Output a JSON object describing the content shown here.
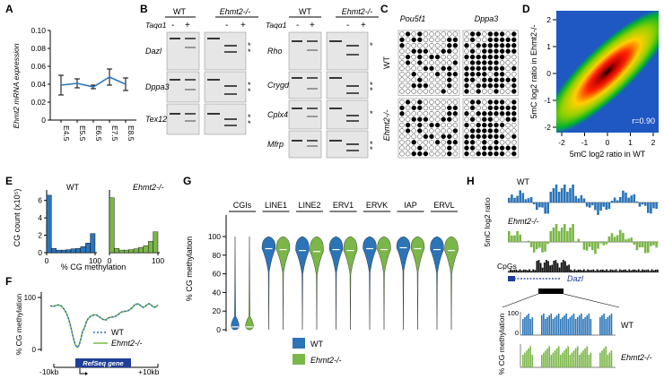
{
  "panels": {
    "A": {
      "letter": "A",
      "ylabel": "Ehmt2 mRNA expression",
      "yticks": [
        "0",
        "0.02",
        "0.04",
        "0.06",
        "0.08",
        "0.10"
      ],
      "xticks": [
        "E4.5",
        "E5.5",
        "E6.5",
        "E7.5",
        "E8.5"
      ]
    },
    "B": {
      "letter": "B",
      "headers": [
        "WT",
        "Ehmt2-/-",
        "WT",
        "Ehmt2-/-"
      ],
      "rowlabel": "Taqα1",
      "signs": [
        "-",
        "+",
        "-",
        "+",
        "-",
        "+",
        "-",
        "+"
      ],
      "genes_left": [
        "Dazl",
        "Dppa3",
        "Tex12"
      ],
      "genes_right": [
        "Rho",
        "Crygd",
        "Cplx4",
        "Mfrp"
      ],
      "asterisk": "*"
    },
    "C": {
      "letter": "C",
      "genes": [
        "Pou5f1",
        "Dppa3"
      ],
      "rows": [
        "WT",
        "Ehmt2-/-"
      ]
    },
    "D": {
      "letter": "D",
      "ylabel": "5mC log2 ratio in Ehmt2-/-",
      "xlabel": "5mC log2 ratio in WT",
      "ticks": [
        "-2",
        "-1",
        "0",
        "1",
        "2"
      ],
      "r_label": "r=0.90"
    },
    "E": {
      "letter": "E",
      "ylabel": "CG count (x10⁵)",
      "yticks": [
        "0",
        "2",
        "4",
        "6"
      ],
      "xticks": [
        "0",
        "100"
      ],
      "xlabel": "% CG methylation",
      "wt_label": "WT",
      "mut_label": "Ehmt2-/-"
    },
    "F": {
      "letter": "F",
      "ylabel": "% CG methylation",
      "yticks": [
        "0",
        "100"
      ],
      "legend": [
        "WT",
        "Ehmt2-/-"
      ],
      "gene_box": "RefSeq gene",
      "xleft": "-10kb",
      "xright": "+10kb"
    },
    "G": {
      "letter": "G",
      "ylabel": "% CG methylation",
      "yticks": [
        "0",
        "20",
        "40",
        "60",
        "80",
        "100"
      ],
      "categories": [
        "CGIs",
        "LINE1",
        "LINE2",
        "ERV1",
        "ERVK",
        "IAP",
        "ERVL"
      ],
      "legend": [
        "WT",
        "Ehmt2-/-"
      ]
    },
    "H": {
      "letter": "H",
      "ylabel_top": "5mC log2 ratio",
      "wt_label": "WT",
      "mut_label": "Ehmt2-/-",
      "cpg_label": "CpGs",
      "gene": "Dazl",
      "ylabel_bottom": "% CG methylation",
      "bottom_ticks": [
        "100",
        "0"
      ],
      "wt_label2": "WT",
      "mut_label2": "Ehmt2-/-"
    }
  },
  "colors": {
    "wt": "#2b74b8",
    "mut": "#7ab648"
  },
  "chart_data": [
    {
      "panel": "A",
      "type": "line",
      "x": [
        "E4.5",
        "E5.5",
        "E6.5",
        "E7.5",
        "E8.5"
      ],
      "values": [
        0.039,
        0.041,
        0.037,
        0.048,
        0.04
      ],
      "errors": [
        0.011,
        0.005,
        0.002,
        0.009,
        0.007
      ],
      "ylim": [
        0,
        0.1
      ]
    },
    {
      "panel": "E",
      "type": "bar",
      "series": [
        {
          "name": "WT",
          "values": [
            6.6,
            0.5,
            0.3,
            0.3,
            0.35,
            0.45,
            0.5,
            0.7,
            1.1,
            2.2
          ]
        },
        {
          "name": "Ehmt2-/-",
          "values": [
            6.3,
            0.5,
            0.3,
            0.3,
            0.35,
            0.45,
            0.6,
            0.8,
            1.3,
            2.4
          ]
        }
      ],
      "ylim": [
        0,
        7
      ]
    },
    {
      "panel": "G",
      "type": "violin",
      "categories": [
        "CGIs",
        "LINE1",
        "LINE2",
        "ERV1",
        "ERVK",
        "IAP",
        "ERVL"
      ],
      "wt_median": [
        3,
        87,
        85,
        86,
        87,
        88,
        86
      ],
      "mut_median": [
        3,
        86,
        84,
        85,
        86,
        87,
        85
      ],
      "ylim": [
        0,
        100
      ]
    }
  ]
}
